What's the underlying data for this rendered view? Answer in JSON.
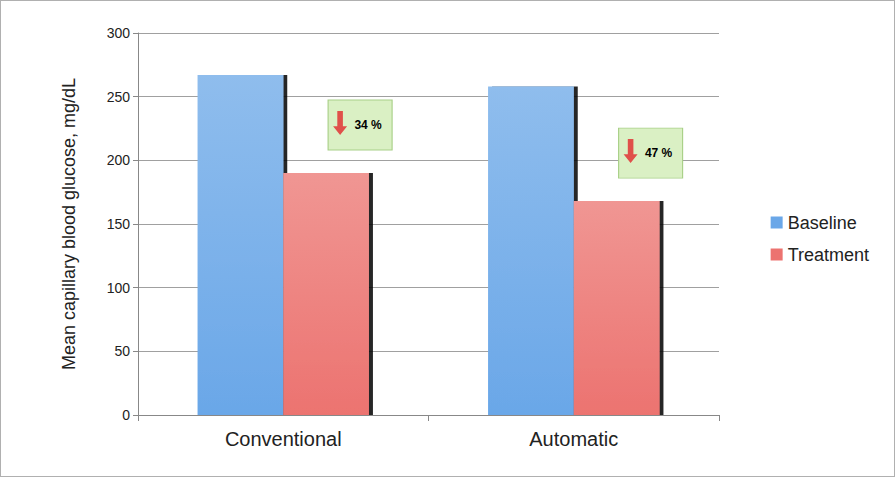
{
  "chart_data": {
    "type": "bar",
    "categories": [
      "Conventional",
      "Automatic"
    ],
    "series": [
      {
        "name": "Baseline",
        "color": "#6aa7e8",
        "values": [
          267,
          258
        ]
      },
      {
        "name": "Treatment",
        "color": "#ec7370",
        "values": [
          190,
          168
        ]
      }
    ],
    "y_label": "Mean capillary blood glucose, mg/dL",
    "ylim": [
      0,
      300
    ],
    "yticks": [
      0,
      50,
      100,
      150,
      200,
      250,
      300
    ],
    "grid": true,
    "legend": "right",
    "annotations": [
      {
        "text": "34 %",
        "category": "Conventional"
      },
      {
        "text": "47 %",
        "category": "Automatic"
      }
    ]
  }
}
